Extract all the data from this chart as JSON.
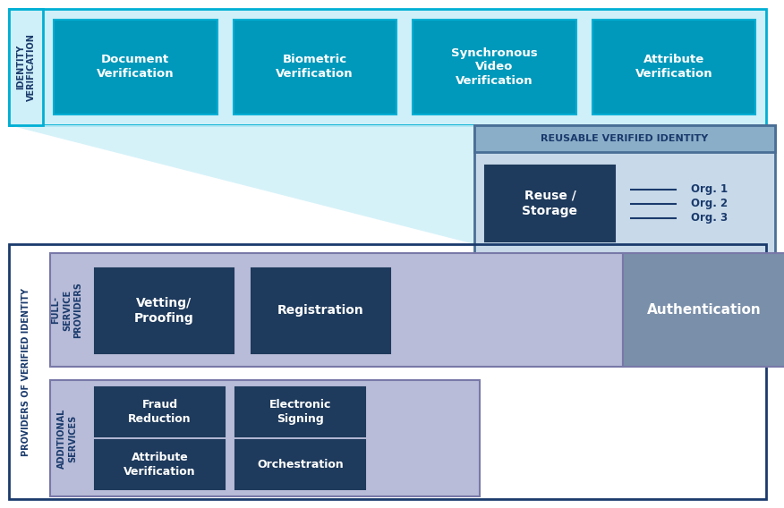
{
  "colors": {
    "cyan_bg": "#cff0f8",
    "cyan_border": "#00afd4",
    "cyan_box": "#0099bb",
    "dark_navy": "#1e3a5c",
    "light_blue_border": "#4a6f96",
    "lavender_bg": "#b8bcd8",
    "lavender_border": "#7878a8",
    "label_blue": "#1a3a6c",
    "reusable_header_bg": "#8aaec8",
    "reusable_body_bg": "#c8daea",
    "auth_bg": "#7a8faa",
    "white": "#ffffff",
    "triangle_color": "#cff0f8"
  },
  "iv_label": "IDENTITY\nVERIFICATION",
  "iv_boxes": [
    "Document\nVerification",
    "Biometric\nVerification",
    "Synchronous\nVideo\nVerification",
    "Attribute\nVerification"
  ],
  "reusable_header": "REUSABLE VERIFIED IDENTITY",
  "reuse_box_label": "Reuse /\nStorage",
  "org_labels": [
    "Org. 1",
    "Org. 2",
    "Org. 3"
  ],
  "pvi_label": "PROVIDERS OF VERIFIED IDENTITY",
  "fsp_label": "FULL-\nSERVICE\nPROVIDERS",
  "ads_label": "ADDITIONAL\nSERVICES",
  "full_service_boxes": [
    "Vetting/\nProofing",
    "Registration"
  ],
  "auth_label": "Authentication",
  "additional_boxes": [
    [
      "Fraud\nReduction",
      "Electronic\nSigning"
    ],
    [
      "Attribute\nVerification",
      "Orchestration"
    ]
  ]
}
